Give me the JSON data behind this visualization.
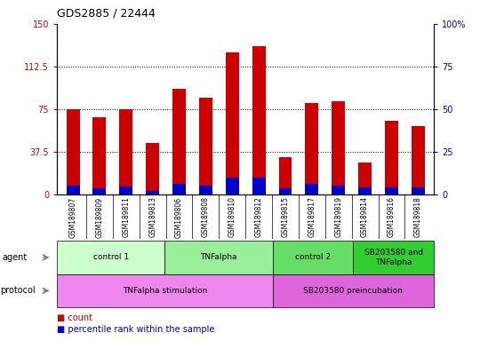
{
  "title": "GDS2885 / 22444",
  "samples": [
    "GSM189807",
    "GSM189809",
    "GSM189811",
    "GSM189813",
    "GSM189806",
    "GSM189808",
    "GSM189810",
    "GSM189812",
    "GSM189815",
    "GSM189817",
    "GSM189819",
    "GSM189814",
    "GSM189816",
    "GSM189818"
  ],
  "count_values": [
    75,
    68,
    75,
    45,
    93,
    85,
    125,
    130,
    33,
    80,
    82,
    28,
    65,
    60
  ],
  "percentile_values": [
    8,
    5,
    7,
    3,
    9,
    8,
    15,
    15,
    5,
    9,
    8,
    6,
    6,
    6
  ],
  "ylim_left": [
    0,
    150
  ],
  "ylim_right": [
    0,
    100
  ],
  "yticks_left": [
    0,
    37.5,
    75,
    112.5,
    150
  ],
  "yticks_right": [
    0,
    25,
    50,
    75,
    100
  ],
  "ytick_labels_left": [
    "0",
    "37.5",
    "75",
    "112.5",
    "150"
  ],
  "ytick_labels_right": [
    "0",
    "25",
    "50",
    "75",
    "100%"
  ],
  "bar_color_count": "#cc0000",
  "bar_color_pct": "#0000cc",
  "bar_width": 0.5,
  "agent_groups": [
    {
      "label": "control 1",
      "start": 0,
      "end": 4,
      "color": "#ccffcc"
    },
    {
      "label": "TNFalpha",
      "start": 4,
      "end": 8,
      "color": "#99ee99"
    },
    {
      "label": "control 2",
      "start": 8,
      "end": 11,
      "color": "#66dd66"
    },
    {
      "label": "SB203580 and\nTNFalpha",
      "start": 11,
      "end": 14,
      "color": "#33cc33"
    }
  ],
  "protocol_groups": [
    {
      "label": "TNFalpha stimulation",
      "start": 0,
      "end": 8,
      "color": "#ee88ee"
    },
    {
      "label": "SB203580 preincubation",
      "start": 8,
      "end": 14,
      "color": "#dd66dd"
    }
  ],
  "agent_label": "agent",
  "protocol_label": "protocol",
  "legend_count_label": "count",
  "legend_pct_label": "percentile rank within the sample",
  "tick_area_color": "#cccccc"
}
